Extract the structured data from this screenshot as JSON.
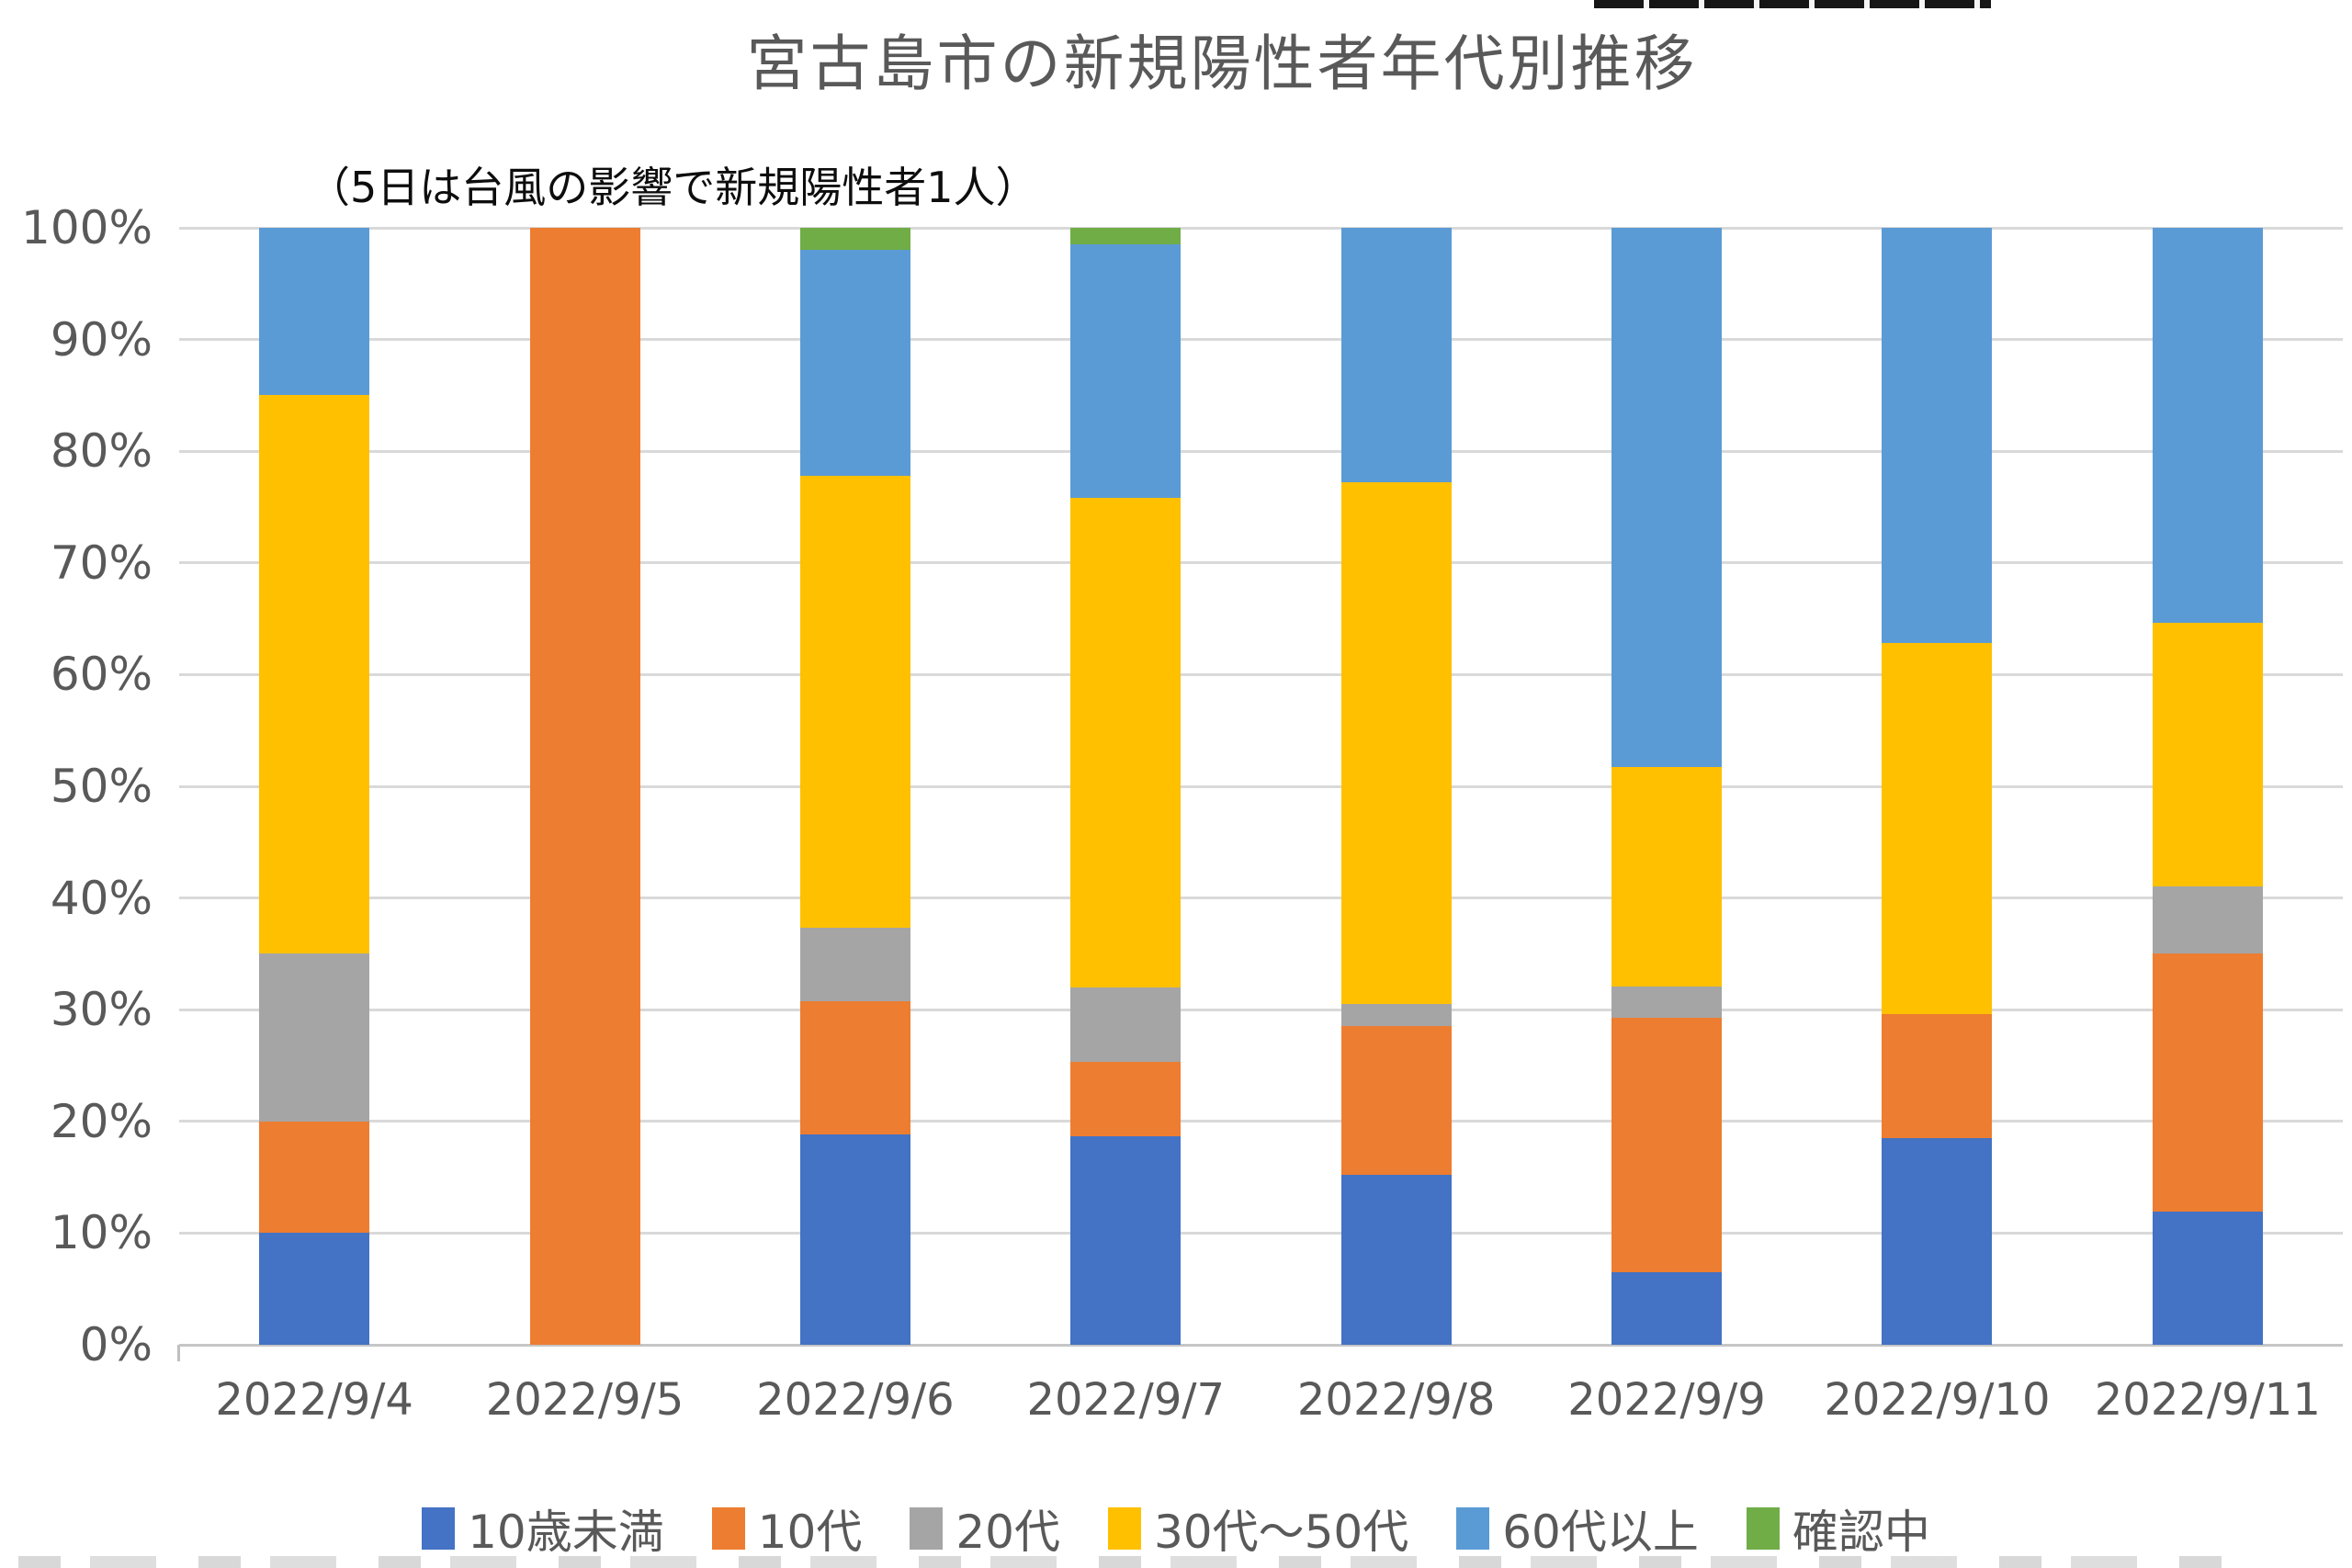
{
  "chart_data": {
    "type": "bar",
    "subtype": "stacked-100-percent",
    "title": "宮古島市の新規陽性者年代別推移",
    "annotation": "（5日は台風の影響で新規陽性者1人）",
    "categories": [
      "2022/9/4",
      "2022/9/5",
      "2022/9/6",
      "2022/9/7",
      "2022/9/8",
      "2022/9/9",
      "2022/9/10",
      "2022/9/11"
    ],
    "series": [
      {
        "name": "10歳未満",
        "color": "#4472C4",
        "values": [
          10,
          0,
          18.8,
          18.7,
          15.2,
          6.5,
          18.5,
          11.9
        ]
      },
      {
        "name": "10代",
        "color": "#ED7D31",
        "values": [
          10,
          100,
          12.0,
          6.6,
          13.3,
          22.8,
          11.1,
          23.1
        ]
      },
      {
        "name": "20代",
        "color": "#A5A5A5",
        "values": [
          15,
          0,
          6.5,
          6.7,
          2.0,
          2.8,
          0,
          6.0
        ]
      },
      {
        "name": "30代～50代",
        "color": "#FFC000",
        "values": [
          50,
          0,
          40.5,
          43.8,
          46.7,
          19.6,
          33.2,
          23.6
        ]
      },
      {
        "name": "60代以上",
        "color": "#5B9BD5",
        "values": [
          15,
          0,
          20.2,
          22.7,
          22.8,
          48.3,
          37.2,
          35.4
        ]
      },
      {
        "name": "確認中",
        "color": "#70AD47",
        "values": [
          0,
          0,
          2.0,
          1.5,
          0,
          0,
          0,
          0
        ]
      }
    ],
    "y_ticks": [
      "0%",
      "10%",
      "20%",
      "30%",
      "40%",
      "50%",
      "60%",
      "70%",
      "80%",
      "90%",
      "100%"
    ],
    "ylim": [
      0,
      100
    ],
    "xlabel": "",
    "ylabel": "",
    "grid": true,
    "gridline_color": "#D9D9D9",
    "legend_position": "bottom",
    "text_color": "#595959"
  }
}
